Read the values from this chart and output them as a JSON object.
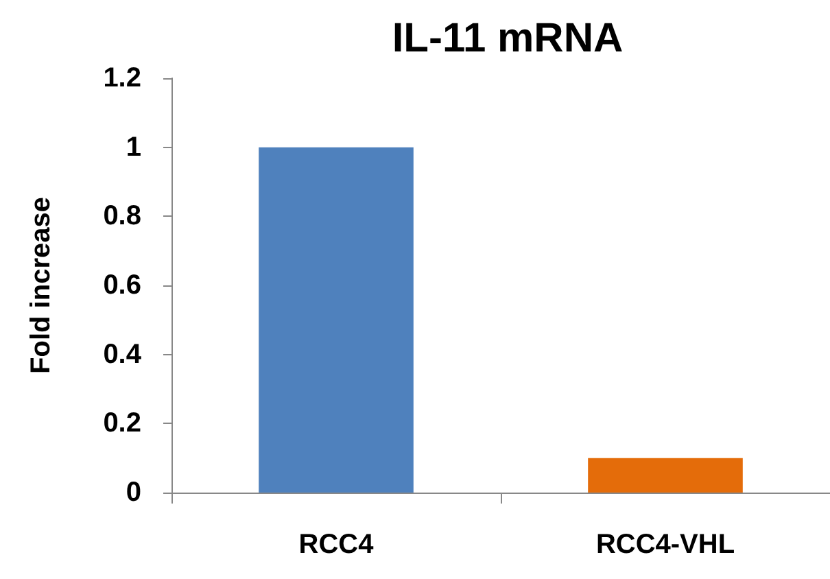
{
  "chart_data": {
    "type": "bar",
    "title": "IL-11 mRNA",
    "ylabel": "Fold increase",
    "categories": [
      "RCC4",
      "RCC4-VHL"
    ],
    "values": [
      1,
      0.1
    ],
    "colors": [
      "#4f81bd",
      "#e46c0a"
    ],
    "ylim": [
      0,
      1.2
    ],
    "yticks": [
      0,
      0.2,
      0.4,
      0.6,
      0.8,
      1,
      1.2
    ]
  }
}
